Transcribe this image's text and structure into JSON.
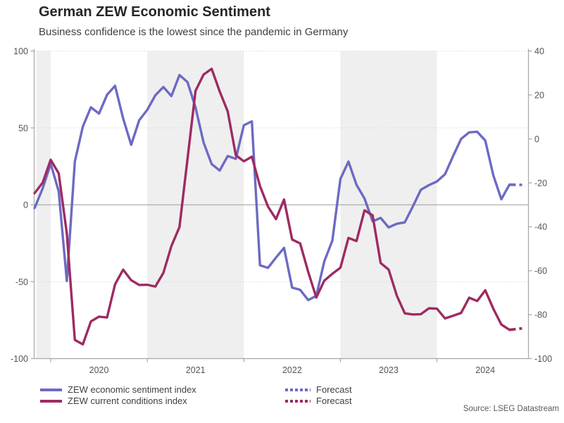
{
  "header": {
    "title": "German ZEW Economic Sentiment",
    "subtitle": "Business confidence is the lowest since the pandemic in Germany"
  },
  "source": "Source: LSEG Datastream",
  "colors": {
    "sentiment": "#6c6ac4",
    "conditions": "#9e2a62",
    "band": "#efefef",
    "grid": "#d9d9d9",
    "zero_line": "#999999",
    "axis": "#a6a6a6",
    "tick_text": "#555555"
  },
  "legend": [
    {
      "label": "ZEW economic sentiment index",
      "series": "sentiment",
      "style": "solid"
    },
    {
      "label": "ZEW current conditions index",
      "series": "conditions",
      "style": "solid"
    },
    {
      "label": "Forecast",
      "series": "sentiment",
      "style": "dotted"
    },
    {
      "label": "Forecast",
      "series": "conditions",
      "style": "dotted"
    }
  ],
  "chart_data": {
    "type": "line",
    "frequency": "monthly",
    "x_start": "Nov 2019",
    "x_end_actual": "Oct 2024",
    "x_tick_labels": [
      "2020",
      "2021",
      "2022",
      "2023",
      "2024"
    ],
    "shaded_years": [
      2019,
      2021,
      2023
    ],
    "left_axis": {
      "ticks": [
        100,
        50,
        0,
        -50,
        -100
      ],
      "range": [
        -100,
        100
      ],
      "dotted_gridlines": [
        100,
        50,
        -50
      ],
      "zero_line": 0
    },
    "right_axis": {
      "ticks": [
        40,
        20,
        0,
        -20,
        -40,
        -60,
        -80,
        -100
      ],
      "range": [
        -100,
        40
      ]
    },
    "series": [
      {
        "name": "ZEW economic sentiment index",
        "axis": "left",
        "color_key": "sentiment",
        "values": [
          -2.1,
          10.7,
          26.7,
          8.7,
          -49.5,
          28.2,
          51.0,
          63.4,
          59.3,
          71.5,
          77.4,
          56.1,
          39.0,
          55.0,
          61.8,
          71.2,
          76.6,
          70.7,
          84.4,
          79.8,
          63.3,
          40.4,
          26.5,
          22.3,
          31.7,
          29.9,
          51.7,
          54.3,
          -39.3,
          -41.0,
          -34.3,
          -28.0,
          -53.8,
          -55.3,
          -61.9,
          -59.2,
          -36.7,
          -23.3,
          16.9,
          28.1,
          13.0,
          4.1,
          -10.7,
          -8.5,
          -14.7,
          -12.3,
          -11.4,
          -1.1,
          9.8,
          12.8,
          15.2,
          19.9,
          31.7,
          42.9,
          47.1,
          47.5,
          41.8,
          19.2,
          3.6,
          13.1
        ],
        "forecast": [
          13.0,
          13.0
        ]
      },
      {
        "name": "ZEW current conditions index",
        "axis": "right",
        "color_key": "conditions",
        "values": [
          -24.7,
          -19.9,
          -9.5,
          -15.7,
          -43.1,
          -91.5,
          -93.5,
          -83.1,
          -80.9,
          -81.3,
          -66.2,
          -59.5,
          -64.3,
          -66.5,
          -66.4,
          -67.2,
          -61.0,
          -48.8,
          -40.1,
          -9.1,
          21.9,
          29.3,
          31.9,
          21.6,
          12.5,
          -7.4,
          -10.2,
          -8.1,
          -21.4,
          -30.8,
          -36.5,
          -27.6,
          -45.8,
          -47.6,
          -60.5,
          -72.2,
          -64.5,
          -61.4,
          -58.6,
          -45.1,
          -46.5,
          -32.5,
          -34.8,
          -56.5,
          -59.5,
          -71.3,
          -79.4,
          -79.9,
          -79.8,
          -77.1,
          -77.3,
          -81.7,
          -80.5,
          -79.2,
          -72.3,
          -73.8,
          -68.9,
          -77.3,
          -84.5,
          -86.9
        ],
        "forecast": [
          -86.5,
          -86.0
        ]
      }
    ]
  }
}
